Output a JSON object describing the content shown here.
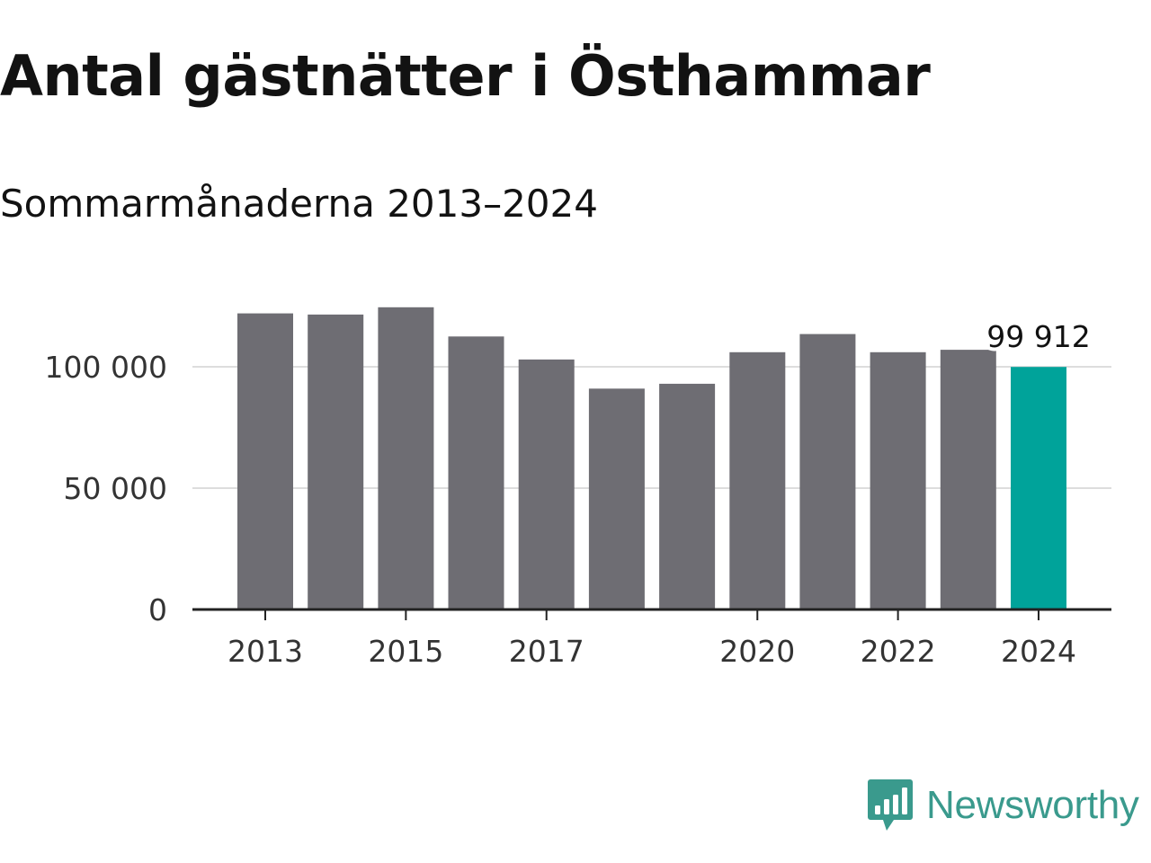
{
  "colors": {
    "bar": "#6e6d73",
    "highlight": "#00a39a",
    "grid": "#dddddd",
    "axis": "#222222",
    "brand": "#3a9a8d"
  },
  "chart_data": {
    "type": "bar",
    "title": "Antal gästnätter i Östhammar",
    "subtitle": "Sommarmånaderna 2013–2024",
    "xlabel": "",
    "ylabel": "",
    "categories": [
      "2013",
      "2014",
      "2015",
      "2016",
      "2017",
      "2018",
      "2019",
      "2020",
      "2021",
      "2022",
      "2023",
      "2024"
    ],
    "x_tick_labels": [
      "2013",
      "2015",
      "2017",
      "2020",
      "2022",
      "2024"
    ],
    "values": [
      122000,
      121500,
      124500,
      112500,
      103000,
      91000,
      93000,
      106000,
      113500,
      106000,
      107000,
      99912
    ],
    "highlight_index": 11,
    "highlight_label": "99 912",
    "y_ticks": [
      0,
      50000,
      100000
    ],
    "y_tick_labels": [
      "0",
      "50 000",
      "100 000"
    ],
    "ylim": [
      0,
      130000
    ],
    "grid": true,
    "legend": "none"
  },
  "brand": {
    "name": "Newsworthy",
    "icon": "newsworthy-logo-icon"
  }
}
